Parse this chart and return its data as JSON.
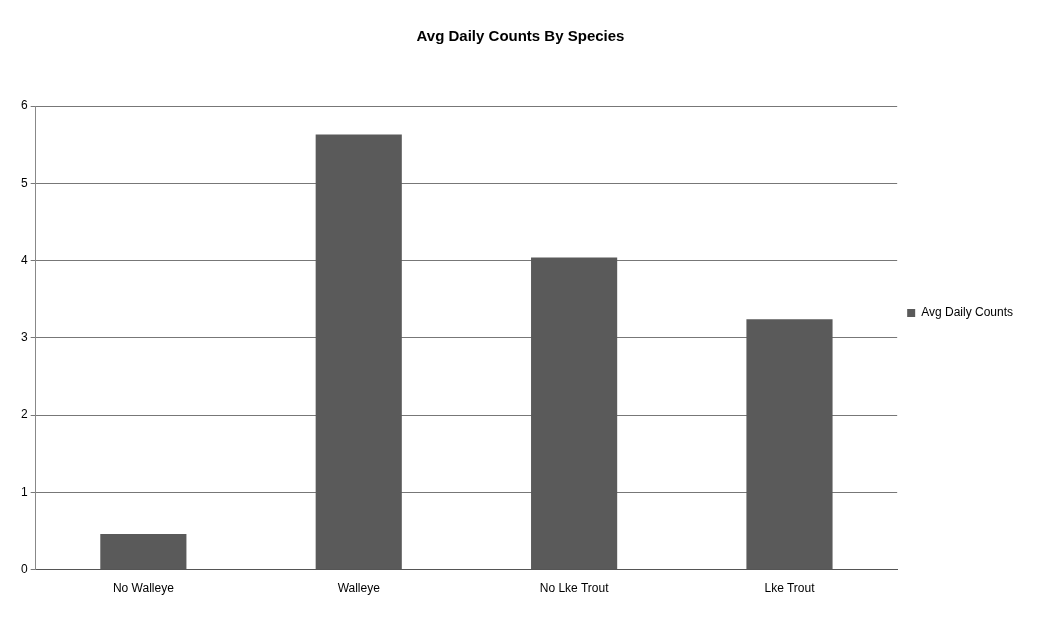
{
  "chart_data": {
    "type": "bar",
    "title": "Avg Daily Counts By Species",
    "categories": [
      "No Walleye",
      "Walleye",
      "No Lke Trout",
      "Lke Trout"
    ],
    "series": [
      {
        "name": "Avg Daily Counts",
        "color": "#5a5a5a",
        "values": [
          0.46,
          5.63,
          4.04,
          3.24
        ]
      }
    ],
    "ylim": [
      0,
      6
    ],
    "yticks": [
      0,
      1,
      2,
      3,
      4,
      5,
      6
    ],
    "grid": "y",
    "legend": "right"
  }
}
